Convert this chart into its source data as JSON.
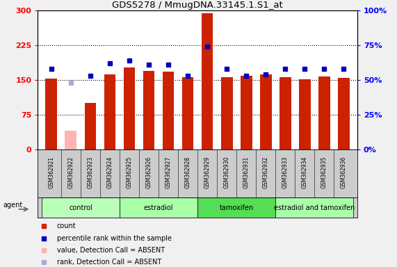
{
  "title": "GDS5278 / MmugDNA.33145.1.S1_at",
  "samples": [
    "GSM362921",
    "GSM362922",
    "GSM362923",
    "GSM362924",
    "GSM362925",
    "GSM362926",
    "GSM362927",
    "GSM362928",
    "GSM362929",
    "GSM362930",
    "GSM362931",
    "GSM362932",
    "GSM362933",
    "GSM362934",
    "GSM362935",
    "GSM362936"
  ],
  "bar_values": [
    153,
    40,
    100,
    163,
    177,
    170,
    168,
    157,
    295,
    157,
    160,
    162,
    157,
    152,
    158,
    155
  ],
  "bar_absent": [
    false,
    true,
    false,
    false,
    false,
    false,
    false,
    false,
    false,
    false,
    false,
    false,
    false,
    false,
    false,
    false
  ],
  "rank_values_pct": [
    58,
    48,
    53,
    62,
    64,
    61,
    61,
    53,
    74,
    58,
    53,
    54,
    58,
    58,
    58,
    58
  ],
  "rank_absent": [
    false,
    true,
    false,
    false,
    false,
    false,
    false,
    false,
    false,
    false,
    false,
    false,
    false,
    false,
    false,
    false
  ],
  "bar_color_normal": "#cc2200",
  "bar_color_absent": "#ffb3b3",
  "rank_color_normal": "#0000bb",
  "rank_color_absent": "#aaaadd",
  "ylim_left": [
    0,
    300
  ],
  "ylim_right": [
    0,
    100
  ],
  "yticks_left": [
    0,
    75,
    150,
    225,
    300
  ],
  "ytick_labels_left": [
    "0",
    "75",
    "150",
    "225",
    "300"
  ],
  "yticks_right": [
    0,
    25,
    50,
    75,
    100
  ],
  "ytick_labels_right": [
    "0%",
    "25%",
    "50%",
    "75%",
    "100%"
  ],
  "groups": [
    {
      "label": "control",
      "start": 0,
      "end": 3,
      "color": "#bbffbb"
    },
    {
      "label": "estradiol",
      "start": 4,
      "end": 7,
      "color": "#aaffaa"
    },
    {
      "label": "tamoxifen",
      "start": 8,
      "end": 11,
      "color": "#55dd55"
    },
    {
      "label": "estradiol and tamoxifen",
      "start": 12,
      "end": 15,
      "color": "#aaffaa"
    }
  ],
  "agent_label": "agent",
  "legend_items": [
    {
      "color": "#cc2200",
      "label": "count"
    },
    {
      "color": "#0000bb",
      "label": "percentile rank within the sample"
    },
    {
      "color": "#ffb3b3",
      "label": "value, Detection Call = ABSENT"
    },
    {
      "color": "#aaaadd",
      "label": "rank, Detection Call = ABSENT"
    }
  ],
  "plot_bg": "white",
  "cell_bg": "#cccccc",
  "fig_bg": "#f0f0f0"
}
